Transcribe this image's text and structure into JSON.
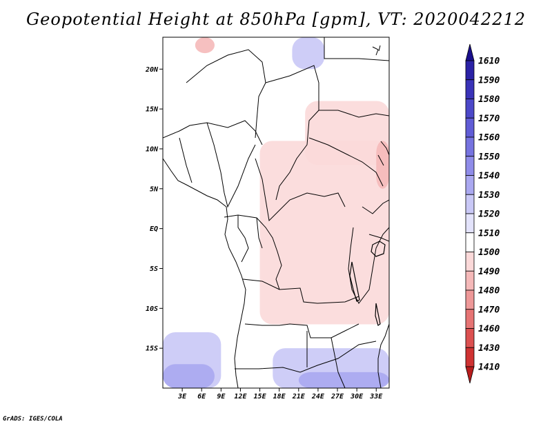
{
  "chart_data": {
    "type": "heatmap",
    "title": "Geopotential Height at 850hPa [gpm], VT: 2020042212",
    "variable": "Geopotential Height",
    "level": "850hPa",
    "units": "gpm",
    "valid_time": "2020042212",
    "lon_range": [
      0,
      35
    ],
    "lat_range": [
      -20,
      24
    ],
    "x_ticks": [
      {
        "value": 3,
        "label": "3E"
      },
      {
        "value": 6,
        "label": "6E"
      },
      {
        "value": 9,
        "label": "9E"
      },
      {
        "value": 12,
        "label": "12E"
      },
      {
        "value": 15,
        "label": "15E"
      },
      {
        "value": 18,
        "label": "18E"
      },
      {
        "value": 21,
        "label": "21E"
      },
      {
        "value": 24,
        "label": "24E"
      },
      {
        "value": 27,
        "label": "27E"
      },
      {
        "value": 30,
        "label": "30E"
      },
      {
        "value": 33,
        "label": "33E"
      }
    ],
    "y_ticks": [
      {
        "value": 20,
        "label": "20N"
      },
      {
        "value": 15,
        "label": "15N"
      },
      {
        "value": 10,
        "label": "10N"
      },
      {
        "value": 5,
        "label": "5N"
      },
      {
        "value": 0,
        "label": "EQ"
      },
      {
        "value": -5,
        "label": "5S"
      },
      {
        "value": -10,
        "label": "10S"
      },
      {
        "value": -15,
        "label": "15S"
      }
    ],
    "colorbar": {
      "levels": [
        1610,
        1590,
        1580,
        1570,
        1560,
        1550,
        1540,
        1530,
        1520,
        1510,
        1500,
        1490,
        1480,
        1470,
        1460,
        1430,
        1410
      ],
      "colors": [
        "#1a0f8c",
        "#2b22a6",
        "#3a33b8",
        "#4c48c9",
        "#605cd6",
        "#7673e0",
        "#8f8ce9",
        "#aaa8f0",
        "#c9c8f6",
        "#e3e3fb",
        "#ffffff",
        "#fbd9d9",
        "#f5b9b9",
        "#ee9898",
        "#e67474",
        "#dc5050",
        "#cf3232",
        "#b81c1c"
      ]
    },
    "field_regions": [
      {
        "name": "south-atlantic-low-blue",
        "value": 1520,
        "lon": [
          0,
          9
        ],
        "lat": [
          -20,
          -13
        ]
      },
      {
        "name": "far-southwest-blue",
        "value": 1530,
        "lon": [
          0,
          8
        ],
        "lat": [
          -20,
          -17
        ]
      },
      {
        "name": "southeast-blue",
        "value": 1520,
        "lon": [
          17,
          35
        ],
        "lat": [
          -20,
          -15
        ]
      },
      {
        "name": "southeast-deep-blue",
        "value": 1530,
        "lon": [
          21,
          35
        ],
        "lat": [
          -20,
          -18
        ]
      },
      {
        "name": "north-blue-patch",
        "value": 1520,
        "lon": [
          20,
          25
        ],
        "lat": [
          20,
          24
        ]
      },
      {
        "name": "sahel-pale-red",
        "value": 1500,
        "lon": [
          0,
          35
        ],
        "lat": [
          5,
          22
        ]
      },
      {
        "name": "central-africa-red",
        "value": 1490,
        "lon": [
          15,
          35
        ],
        "lat": [
          -12,
          11
        ]
      },
      {
        "name": "sudan-red",
        "value": 1490,
        "lon": [
          22,
          35
        ],
        "lat": [
          8,
          16
        ]
      },
      {
        "name": "northwest-red-patch",
        "value": 1480,
        "lon": [
          5,
          8
        ],
        "lat": [
          22,
          24
        ]
      },
      {
        "name": "east-edge-red",
        "value": 1480,
        "lon": [
          33,
          35
        ],
        "lat": [
          5,
          11
        ]
      }
    ]
  },
  "footer": {
    "credit": "GrADS: IGES/COLA"
  },
  "colors": {
    "frame": "#000000",
    "coast": "#000000",
    "background": "#ffffff"
  }
}
